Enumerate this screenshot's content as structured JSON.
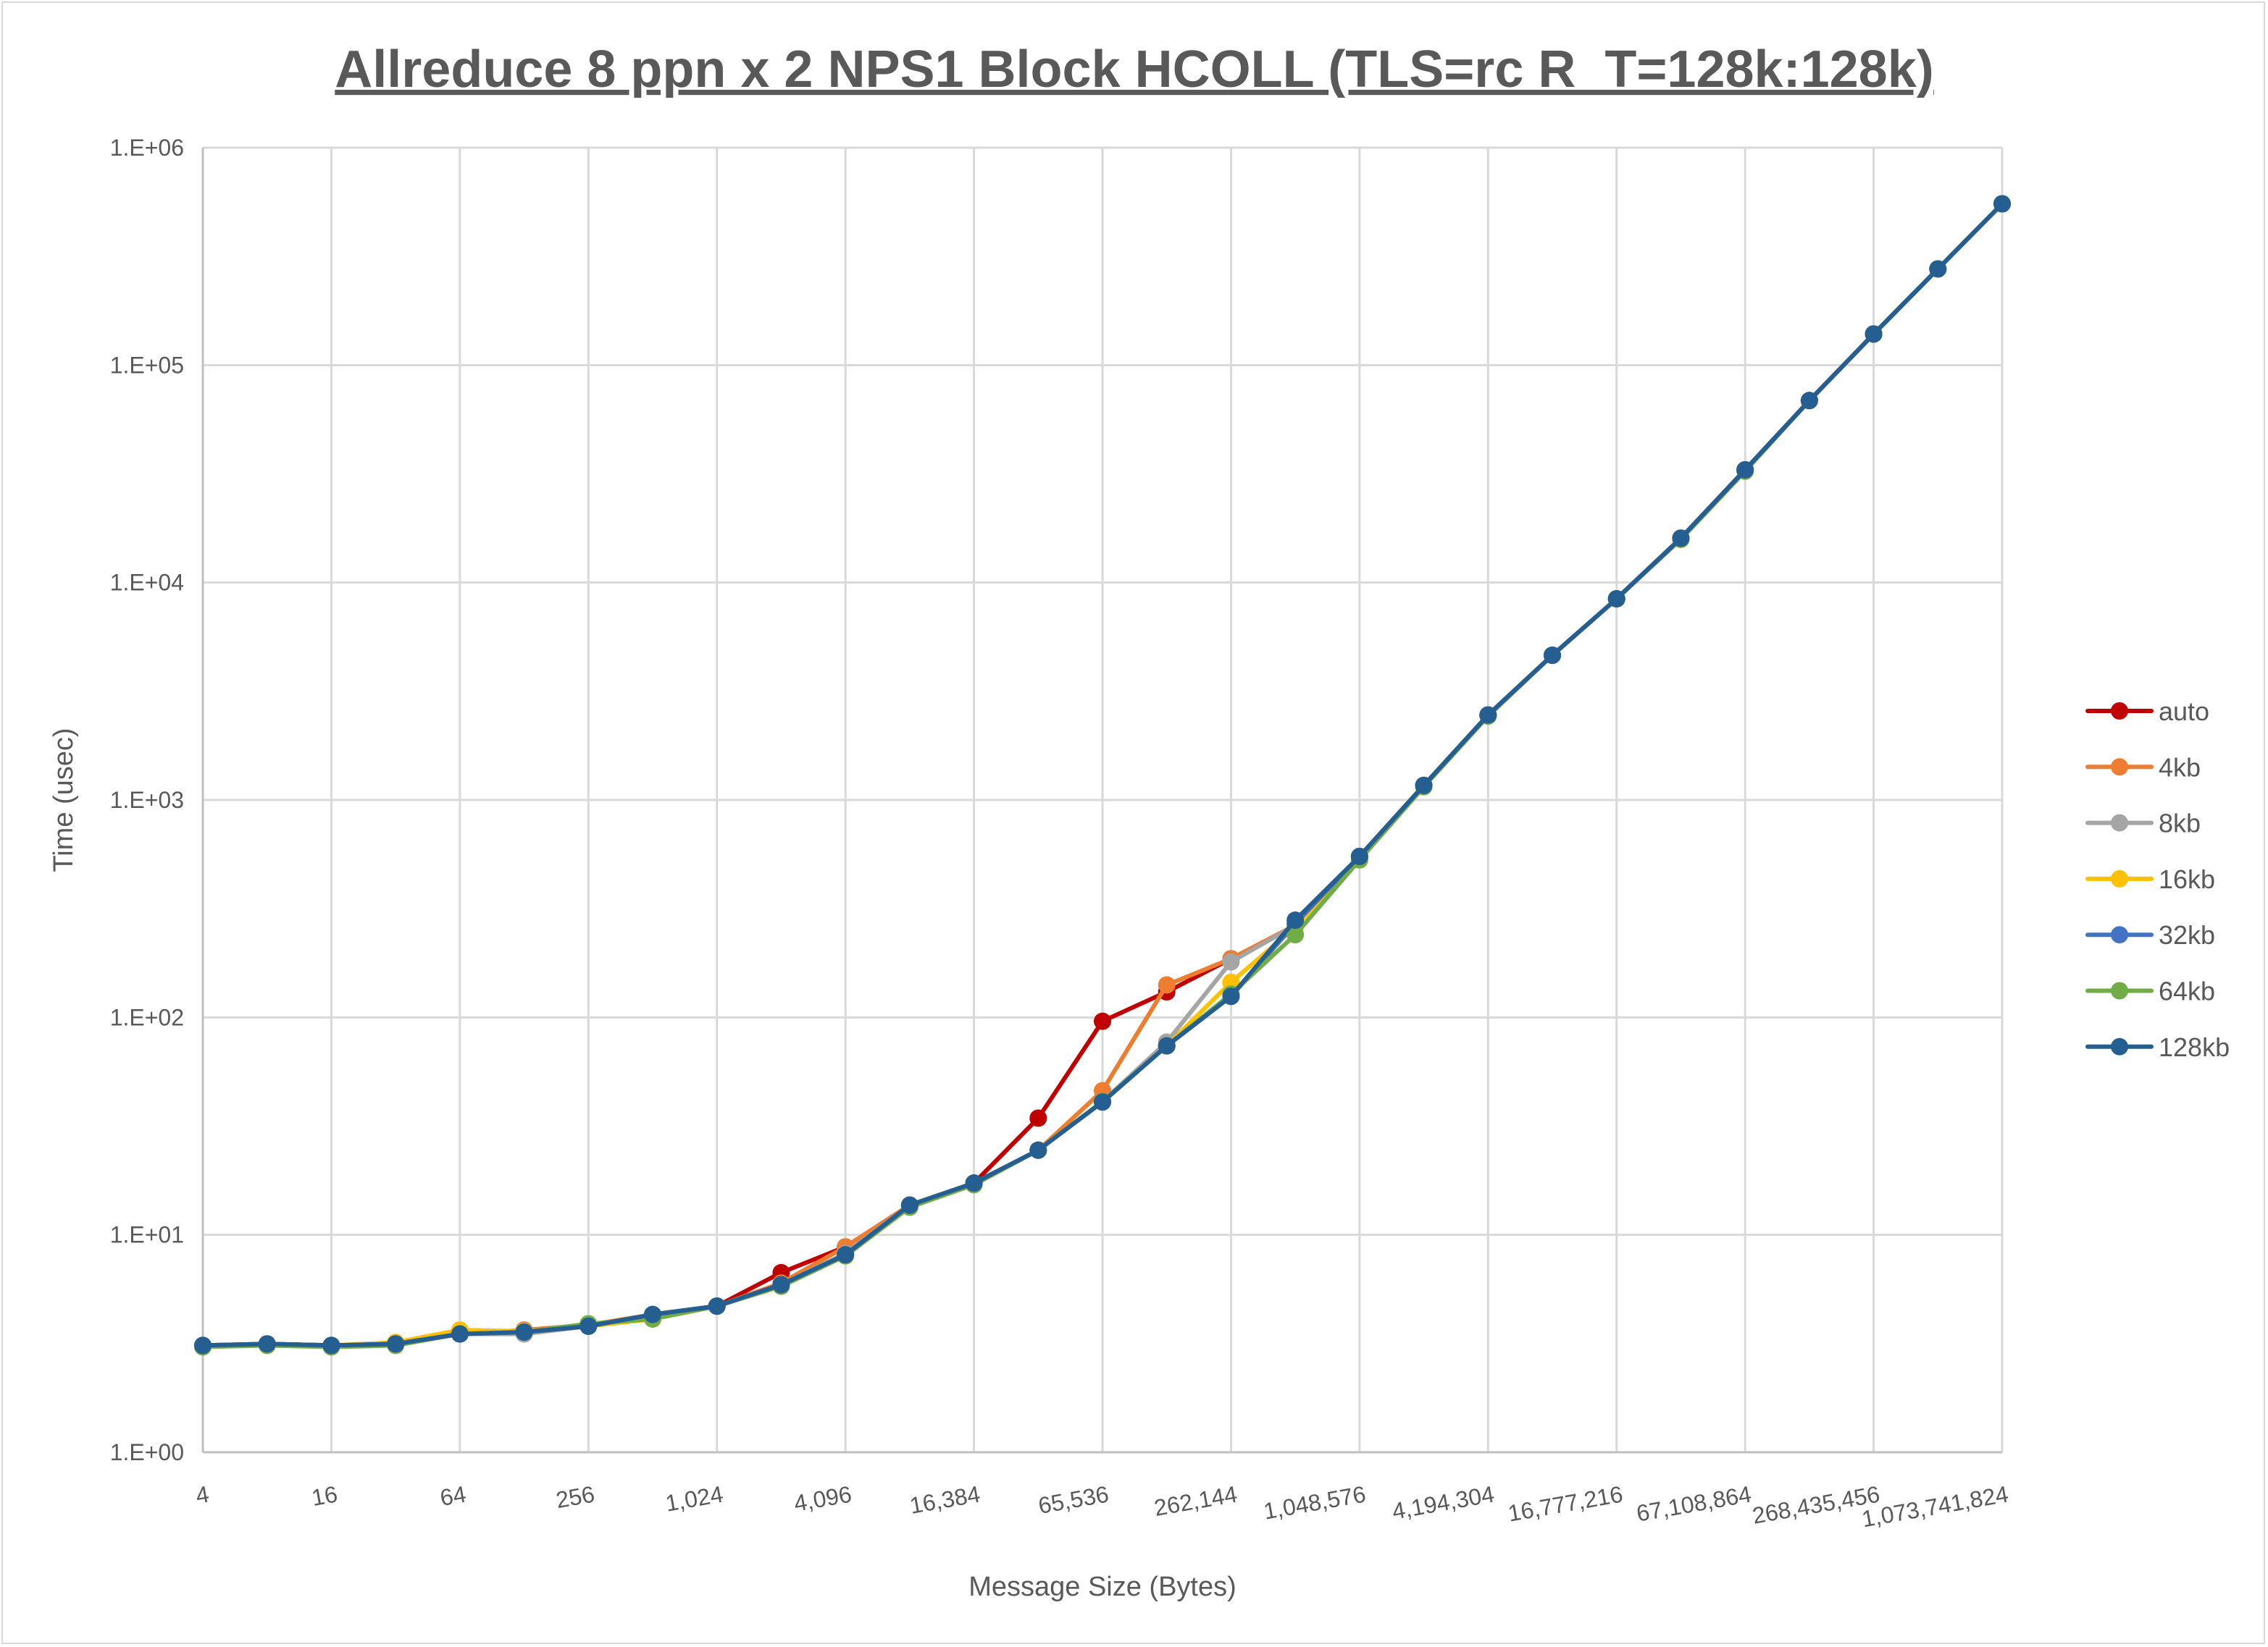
{
  "chart_data": {
    "type": "line",
    "title": "Allreduce 8 ppn x 2 NPS1 Block HCOLL (TLS=rc R_T=128k:128k)",
    "xlabel": "Message Size (Bytes)",
    "ylabel": "Time (usec)",
    "x_scale": "log2",
    "y_scale": "log10",
    "xlim": [
      4,
      1073741824
    ],
    "ylim": [
      1,
      1000000
    ],
    "grid": true,
    "legend_position": "right",
    "x": [
      4,
      8,
      16,
      32,
      64,
      128,
      256,
      512,
      1024,
      2048,
      4096,
      8192,
      16384,
      32768,
      65536,
      131072,
      262144,
      524288,
      1048576,
      2097152,
      4194304,
      8388608,
      16777216,
      33554432,
      67108864,
      134217728,
      268435456,
      536870912,
      1073741824
    ],
    "x_tick_labels": [
      "4",
      "16",
      "64",
      "256",
      "1,024",
      "4,096",
      "16,384",
      "65,536",
      "262,144",
      "1,048,576",
      "4,194,304",
      "16,777,216",
      "67,108,864",
      "268,435,456",
      "1,073,741,824"
    ],
    "y_tick_labels": [
      "1.E+00",
      "1.E+01",
      "1.E+02",
      "1.E+03",
      "1.E+04",
      "1.E+05",
      "1.E+06"
    ],
    "series": [
      {
        "name": "auto",
        "color": "#C00000",
        "values": [
          3.1,
          3.15,
          3.1,
          3.15,
          3.5,
          3.6,
          3.8,
          4.3,
          4.7,
          6.7,
          8.8,
          13.7,
          17.3,
          34.4,
          96,
          131,
          186,
          265,
          550,
          1167,
          2460,
          4630,
          8420,
          16000,
          33000,
          68700,
          139000,
          277000,
          552000
        ]
      },
      {
        "name": "4kb",
        "color": "#ED7D31",
        "values": [
          3.1,
          3.15,
          3.1,
          3.15,
          3.5,
          3.65,
          3.85,
          4.3,
          4.7,
          6.0,
          8.8,
          13.7,
          17.3,
          24.5,
          46,
          141,
          186,
          265,
          550,
          1167,
          2460,
          4630,
          8420,
          16000,
          33000,
          68700,
          139000,
          277000,
          552000
        ]
      },
      {
        "name": "8kb",
        "color": "#A5A5A5",
        "values": [
          3.1,
          3.15,
          3.1,
          3.15,
          3.5,
          3.5,
          3.8,
          4.3,
          4.7,
          5.9,
          8.2,
          13.7,
          17.3,
          24.5,
          41,
          77,
          180,
          265,
          550,
          1167,
          2460,
          4630,
          8420,
          16000,
          33000,
          68700,
          139000,
          277000,
          552000
        ]
      },
      {
        "name": "16kb",
        "color": "#FFC000",
        "values": [
          3.1,
          3.15,
          3.1,
          3.2,
          3.65,
          3.6,
          3.8,
          4.1,
          4.7,
          5.9,
          8.1,
          13.7,
          17.3,
          24.5,
          41,
          74,
          145,
          260,
          550,
          1167,
          2460,
          4630,
          8420,
          16000,
          33000,
          68700,
          139000,
          277000,
          552000
        ]
      },
      {
        "name": "32kb",
        "color": "#4472C4",
        "values": [
          3.1,
          3.15,
          3.1,
          3.15,
          3.5,
          3.57,
          3.8,
          4.3,
          4.7,
          5.9,
          8.1,
          13.7,
          17.3,
          24.5,
          41,
          74,
          125,
          270,
          550,
          1167,
          2460,
          4630,
          8420,
          16000,
          33000,
          68700,
          139000,
          277000,
          552000
        ]
      },
      {
        "name": "64kb",
        "color": "#70AD47",
        "values": [
          3.05,
          3.1,
          3.05,
          3.1,
          3.5,
          3.57,
          3.9,
          4.1,
          4.7,
          5.8,
          8.0,
          13.4,
          17.0,
          24.5,
          41,
          74,
          128,
          240,
          530,
          1150,
          2430,
          4630,
          8420,
          15800,
          32500,
          68700,
          139000,
          277000,
          552000
        ]
      },
      {
        "name": "128kb",
        "color": "#255E91",
        "values": [
          3.1,
          3.15,
          3.1,
          3.15,
          3.5,
          3.57,
          3.8,
          4.3,
          4.7,
          5.9,
          8.1,
          13.7,
          17.3,
          24.5,
          40.8,
          74,
          125,
          280,
          550,
          1167,
          2460,
          4630,
          8420,
          16000,
          33000,
          68700,
          139000,
          277000,
          552000
        ]
      }
    ]
  }
}
